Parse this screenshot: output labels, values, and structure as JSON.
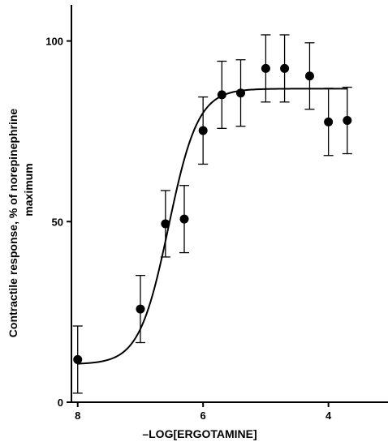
{
  "chart_data": {
    "type": "scatter",
    "title": "",
    "xlabel": "–LOG[ERGOTAMINE]",
    "ylabel_line1": "Contractile response, % of norepinephrine",
    "ylabel_line2": "maximum",
    "x_reversed": true,
    "xlim": [
      8.1,
      3.05
    ],
    "ylim": [
      0,
      110
    ],
    "x_ticks": [
      8,
      6,
      4
    ],
    "y_ticks": [
      0,
      50,
      100
    ],
    "x_tick_labels": [
      "8",
      "6",
      "4"
    ],
    "y_tick_labels": [
      "0",
      "50",
      "100"
    ],
    "grid": false,
    "legend": "none",
    "points": [
      {
        "x": 8.0,
        "y": 11.8,
        "err": 9.3
      },
      {
        "x": 7.0,
        "y": 25.8,
        "err": 9.3
      },
      {
        "x": 6.6,
        "y": 49.4,
        "err": 9.2
      },
      {
        "x": 6.3,
        "y": 50.7,
        "err": 9.3
      },
      {
        "x": 6.0,
        "y": 75.2,
        "err": 9.3
      },
      {
        "x": 5.7,
        "y": 85.1,
        "err": 9.3
      },
      {
        "x": 5.4,
        "y": 85.6,
        "err": 9.2
      },
      {
        "x": 5.0,
        "y": 92.4,
        "err": 9.3
      },
      {
        "x": 4.7,
        "y": 92.4,
        "err": 9.3
      },
      {
        "x": 4.3,
        "y": 90.3,
        "err": 9.2
      },
      {
        "x": 4.0,
        "y": 77.6,
        "err": 9.3
      },
      {
        "x": 3.7,
        "y": 78.0,
        "err": 9.2
      }
    ],
    "fit_curve": {
      "model": "four-parameter logistic",
      "bottom": 10.5,
      "top": 86.8,
      "log_ec50": 6.55,
      "hill_slope": 1.85,
      "x_range": [
        8.0,
        3.7
      ]
    },
    "colors": {
      "marker": "#000000",
      "line": "#000000",
      "axis": "#000000"
    }
  }
}
